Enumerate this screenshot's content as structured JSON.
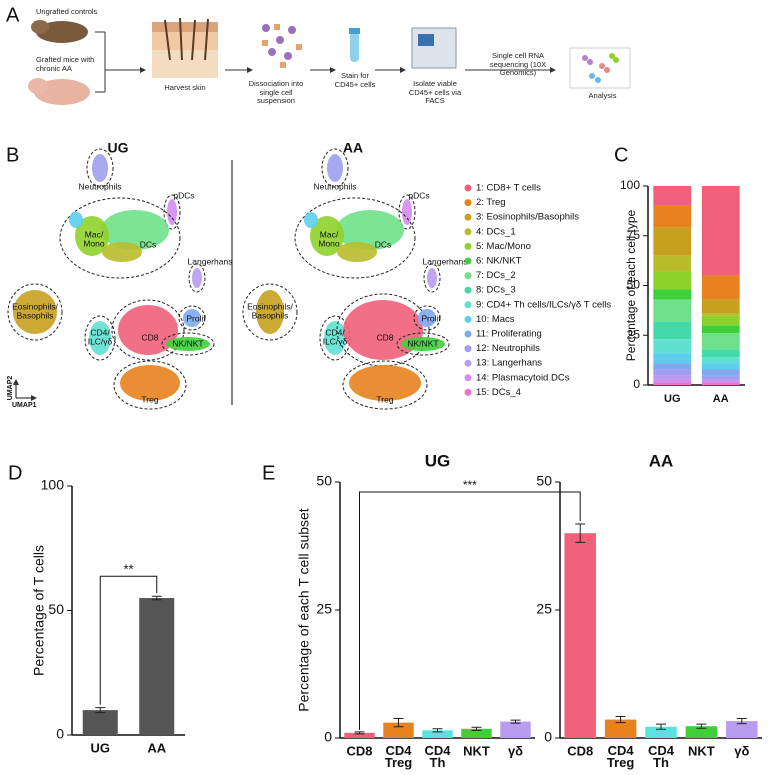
{
  "panels": [
    "A",
    "B",
    "C",
    "D",
    "E"
  ],
  "workflow": {
    "steps": [
      "Ungrafted controls",
      "Grafted mice with chronic AA",
      "Harvest skin",
      "Dissociation into single cell suspension",
      "Stain for CD45+ cells",
      "Isolate viable CD45+ cells via FACS",
      "Single cell RNA sequencing (10X Genomics)",
      "Analysis"
    ]
  },
  "umap": {
    "titles": [
      "UG",
      "AA"
    ],
    "axis_y": "UMAP2",
    "axis_x": "UMAP1",
    "cluster_labels": [
      "Neutrophils",
      "pDCs",
      "Mac/ Mono",
      "DCs",
      "Langerhans",
      "Eosinophils/ Basophils",
      "CD4/ ILC/γδ",
      "CD8",
      "Prolif",
      "NK/NKT",
      "Treg"
    ]
  },
  "chart_data": [
    {
      "type": "stacked_bar",
      "categories": [
        "UG",
        "AA"
      ],
      "ylabel": "Percentage of each cell type",
      "ylim": [
        0,
        100
      ],
      "yticks": [
        0,
        25,
        50,
        75,
        100
      ],
      "series": [
        {
          "name": "1: CD8+ T cells",
          "color": "#f0607a",
          "values": [
            10,
            45
          ]
        },
        {
          "name": "2: Treg",
          "color": "#e8821e",
          "values": [
            11,
            12
          ]
        },
        {
          "name": "3: Eosinophils/Basophils",
          "color": "#c8a020",
          "values": [
            14,
            7
          ]
        },
        {
          "name": "4: DCs_1",
          "color": "#b8bc2a",
          "values": [
            8,
            1
          ]
        },
        {
          "name": "5: Mac/Mono",
          "color": "#8ed12a",
          "values": [
            9,
            5
          ]
        },
        {
          "name": "6: NK/NKT",
          "color": "#3fcf3a",
          "values": [
            5,
            4
          ]
        },
        {
          "name": "7: DCs_2",
          "color": "#6fe08a",
          "values": [
            11,
            8
          ]
        },
        {
          "name": "8: DCs_3",
          "color": "#45d8a8",
          "values": [
            9,
            4
          ]
        },
        {
          "name": "9: CD4+ Th cells/ILCs/γδ T cells",
          "color": "#5fe0d0",
          "values": [
            7,
            3
          ]
        },
        {
          "name": "10: Macs",
          "color": "#5ccfee",
          "values": [
            5,
            3
          ]
        },
        {
          "name": "11: Proliferating",
          "color": "#7fa8ee",
          "values": [
            3,
            3
          ]
        },
        {
          "name": "12: Neutrophils",
          "color": "#9f9ef0",
          "values": [
            3,
            2
          ]
        },
        {
          "name": "13: Langerhans",
          "color": "#b89cf0",
          "values": [
            2,
            1
          ]
        },
        {
          "name": "14: Plasmacytoid DCs",
          "color": "#d58cf0",
          "values": [
            2,
            1
          ]
        },
        {
          "name": "15: DCs_4",
          "color": "#f070d0",
          "values": [
            1,
            1
          ]
        }
      ]
    },
    {
      "type": "bar",
      "categories": [
        "UG",
        "AA"
      ],
      "values": [
        10,
        55
      ],
      "errors": [
        1,
        0.7
      ],
      "color": "#555555",
      "ylabel": "Percentage of T cells",
      "ylim": [
        0,
        100
      ],
      "yticks": [
        0,
        50,
        100
      ],
      "annotation": "**"
    },
    {
      "type": "bar",
      "title": "UG",
      "categories": [
        "CD8",
        "CD4 Treg",
        "CD4 Th",
        "NKT",
        "γδ"
      ],
      "values": [
        1,
        3,
        1.5,
        1.8,
        3.2
      ],
      "errors": [
        0.2,
        0.8,
        0.3,
        0.3,
        0.3
      ],
      "colors": [
        "#f0607a",
        "#e8821e",
        "#5fe0e0",
        "#3fcf3a",
        "#b89cf0"
      ],
      "ylabel": "Percentage of each T cell subset",
      "ylim": [
        0,
        50
      ],
      "yticks": [
        0,
        25,
        50
      ],
      "annotation": "***"
    },
    {
      "type": "bar",
      "title": "AA",
      "categories": [
        "CD8",
        "CD4 Treg",
        "CD4 Th",
        "NKT",
        "γδ"
      ],
      "values": [
        40,
        3.6,
        2.2,
        2.3,
        3.3
      ],
      "errors": [
        1.8,
        0.6,
        0.5,
        0.4,
        0.5
      ],
      "colors": [
        "#f0607a",
        "#e8821e",
        "#5fe0e0",
        "#3fcf3a",
        "#b89cf0"
      ],
      "ylim": [
        0,
        50
      ],
      "yticks": [
        0,
        25,
        50
      ]
    }
  ]
}
